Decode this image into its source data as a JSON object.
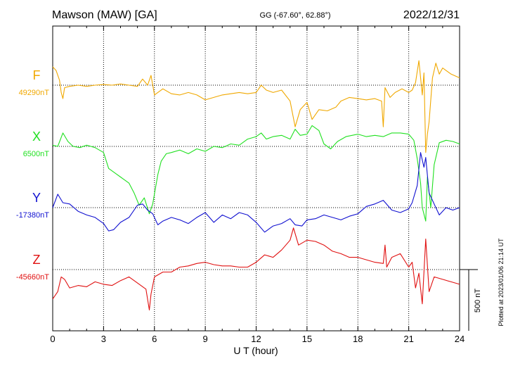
{
  "header": {
    "station": "Mawson (MAW)  [GA]",
    "coords": "GG (-67.60°,  62.88°)",
    "date": "2022/12/31"
  },
  "chart_data": {
    "type": "line",
    "xlabel": "U T (hour)",
    "xlim": [
      0,
      24
    ],
    "xticks": [
      "0",
      "3",
      "6",
      "9",
      "12",
      "15",
      "18",
      "21",
      "24"
    ],
    "unit": "nT",
    "scale_label": "500 nT",
    "scale_nT": 500,
    "grid": true,
    "footnote": "Plotted at 2023/01/06 21:14 UT",
    "series": [
      {
        "name": "F",
        "base_label": "49290nT",
        "base_nT": 49290,
        "color": "#f0a800",
        "points": [
          [
            0,
            150
          ],
          [
            0.2,
            120
          ],
          [
            0.4,
            40
          ],
          [
            0.5,
            -60
          ],
          [
            0.6,
            -110
          ],
          [
            0.7,
            -20
          ],
          [
            1.0,
            -10
          ],
          [
            1.5,
            0
          ],
          [
            2.0,
            -10
          ],
          [
            2.5,
            0
          ],
          [
            3.0,
            5
          ],
          [
            3.5,
            0
          ],
          [
            4.0,
            10
          ],
          [
            4.5,
            0
          ],
          [
            5.0,
            -10
          ],
          [
            5.3,
            50
          ],
          [
            5.6,
            0
          ],
          [
            5.8,
            80
          ],
          [
            6.0,
            -80
          ],
          [
            6.2,
            -60
          ],
          [
            6.5,
            -30
          ],
          [
            7.0,
            -70
          ],
          [
            7.5,
            -80
          ],
          [
            8.0,
            -60
          ],
          [
            8.5,
            -80
          ],
          [
            9.0,
            -120
          ],
          [
            9.5,
            -100
          ],
          [
            10.0,
            -80
          ],
          [
            10.5,
            -70
          ],
          [
            11.0,
            -60
          ],
          [
            11.5,
            -70
          ],
          [
            12.0,
            -60
          ],
          [
            12.3,
            0
          ],
          [
            12.6,
            -40
          ],
          [
            13.0,
            -60
          ],
          [
            13.5,
            -40
          ],
          [
            14.0,
            -130
          ],
          [
            14.3,
            -340
          ],
          [
            14.6,
            -200
          ],
          [
            15.0,
            -140
          ],
          [
            15.3,
            -280
          ],
          [
            15.7,
            -200
          ],
          [
            16.2,
            -210
          ],
          [
            16.7,
            -180
          ],
          [
            17.0,
            -130
          ],
          [
            17.5,
            -100
          ],
          [
            18.0,
            -110
          ],
          [
            18.5,
            -120
          ],
          [
            19.0,
            -110
          ],
          [
            19.4,
            -130
          ],
          [
            19.5,
            -340
          ],
          [
            19.6,
            -20
          ],
          [
            19.9,
            -100
          ],
          [
            20.2,
            -60
          ],
          [
            20.6,
            -30
          ],
          [
            21.0,
            -60
          ],
          [
            21.2,
            -40
          ],
          [
            21.4,
            20
          ],
          [
            21.6,
            200
          ],
          [
            21.8,
            -80
          ],
          [
            21.9,
            100
          ],
          [
            22.0,
            -550
          ],
          [
            22.1,
            -400
          ],
          [
            22.2,
            -300
          ],
          [
            22.4,
            60
          ],
          [
            22.6,
            180
          ],
          [
            22.8,
            90
          ],
          [
            23.0,
            140
          ],
          [
            23.5,
            90
          ],
          [
            24,
            60
          ]
        ]
      },
      {
        "name": "X",
        "base_label": "6500nT",
        "base_nT": 6500,
        "color": "#20e020",
        "points": [
          [
            0,
            10
          ],
          [
            0.3,
            0
          ],
          [
            0.6,
            110
          ],
          [
            0.9,
            40
          ],
          [
            1.2,
            0
          ],
          [
            1.6,
            -10
          ],
          [
            2.0,
            10
          ],
          [
            2.5,
            -10
          ],
          [
            3.0,
            -50
          ],
          [
            3.3,
            -180
          ],
          [
            3.7,
            -220
          ],
          [
            4.0,
            -250
          ],
          [
            4.5,
            -300
          ],
          [
            4.8,
            -380
          ],
          [
            5.1,
            -480
          ],
          [
            5.4,
            -420
          ],
          [
            5.7,
            -550
          ],
          [
            5.9,
            -470
          ],
          [
            6.2,
            -230
          ],
          [
            6.4,
            -120
          ],
          [
            6.7,
            -60
          ],
          [
            7.0,
            -50
          ],
          [
            7.5,
            -30
          ],
          [
            8.0,
            -60
          ],
          [
            8.5,
            -20
          ],
          [
            9.0,
            -40
          ],
          [
            9.5,
            0
          ],
          [
            10.0,
            -10
          ],
          [
            10.5,
            20
          ],
          [
            11.0,
            10
          ],
          [
            11.5,
            60
          ],
          [
            12.0,
            80
          ],
          [
            12.3,
            110
          ],
          [
            12.6,
            60
          ],
          [
            13.0,
            80
          ],
          [
            13.5,
            90
          ],
          [
            14.0,
            60
          ],
          [
            14.3,
            140
          ],
          [
            14.6,
            90
          ],
          [
            15.0,
            100
          ],
          [
            15.3,
            170
          ],
          [
            15.7,
            130
          ],
          [
            16.0,
            20
          ],
          [
            16.4,
            -20
          ],
          [
            16.8,
            40
          ],
          [
            17.3,
            80
          ],
          [
            18.0,
            100
          ],
          [
            18.5,
            80
          ],
          [
            19.0,
            90
          ],
          [
            19.5,
            80
          ],
          [
            20.0,
            110
          ],
          [
            20.5,
            110
          ],
          [
            21.0,
            100
          ],
          [
            21.3,
            50
          ],
          [
            21.5,
            -100
          ],
          [
            21.7,
            -300
          ],
          [
            21.8,
            -500
          ],
          [
            22.0,
            -610
          ],
          [
            22.1,
            -250
          ],
          [
            22.3,
            -500
          ],
          [
            22.5,
            -150
          ],
          [
            22.8,
            30
          ],
          [
            23.2,
            50
          ],
          [
            23.6,
            40
          ],
          [
            24,
            20
          ]
        ]
      },
      {
        "name": "Y",
        "base_label": "-17380nT",
        "base_nT": -17380,
        "color": "#1010d0",
        "points": [
          [
            0,
            0
          ],
          [
            0.3,
            110
          ],
          [
            0.6,
            40
          ],
          [
            1.0,
            30
          ],
          [
            1.5,
            -30
          ],
          [
            2.0,
            -60
          ],
          [
            2.5,
            -80
          ],
          [
            3.0,
            -130
          ],
          [
            3.3,
            -190
          ],
          [
            3.6,
            -180
          ],
          [
            4.0,
            -120
          ],
          [
            4.5,
            -80
          ],
          [
            5.0,
            20
          ],
          [
            5.3,
            30
          ],
          [
            5.6,
            -20
          ],
          [
            5.9,
            -50
          ],
          [
            6.2,
            -140
          ],
          [
            6.5,
            -110
          ],
          [
            7.0,
            -80
          ],
          [
            7.5,
            -100
          ],
          [
            8.0,
            -130
          ],
          [
            8.5,
            -80
          ],
          [
            9.0,
            -40
          ],
          [
            9.5,
            -120
          ],
          [
            10.0,
            -60
          ],
          [
            10.5,
            -90
          ],
          [
            11.0,
            -40
          ],
          [
            11.5,
            -60
          ],
          [
            12.0,
            -120
          ],
          [
            12.5,
            -200
          ],
          [
            13.0,
            -150
          ],
          [
            13.5,
            -130
          ],
          [
            14.0,
            -90
          ],
          [
            14.3,
            -140
          ],
          [
            14.7,
            -150
          ],
          [
            15.0,
            -100
          ],
          [
            15.5,
            -90
          ],
          [
            16.0,
            -60
          ],
          [
            16.5,
            -80
          ],
          [
            17.0,
            -100
          ],
          [
            17.5,
            -70
          ],
          [
            18.0,
            -50
          ],
          [
            18.5,
            10
          ],
          [
            19.0,
            30
          ],
          [
            19.5,
            60
          ],
          [
            20.0,
            -20
          ],
          [
            20.5,
            -40
          ],
          [
            21.0,
            -10
          ],
          [
            21.2,
            40
          ],
          [
            21.5,
            180
          ],
          [
            21.7,
            450
          ],
          [
            21.9,
            330
          ],
          [
            22.0,
            410
          ],
          [
            22.2,
            120
          ],
          [
            22.5,
            30
          ],
          [
            22.8,
            -60
          ],
          [
            23.2,
            0
          ],
          [
            23.6,
            -20
          ],
          [
            24,
            0
          ]
        ]
      },
      {
        "name": "Z",
        "base_label": "-45660nT",
        "base_nT": -45660,
        "color": "#e01010",
        "points": [
          [
            0,
            -240
          ],
          [
            0.3,
            -180
          ],
          [
            0.5,
            -60
          ],
          [
            0.7,
            -80
          ],
          [
            1.0,
            -150
          ],
          [
            1.5,
            -130
          ],
          [
            2.0,
            -140
          ],
          [
            2.5,
            -100
          ],
          [
            3.0,
            -120
          ],
          [
            3.5,
            -130
          ],
          [
            4.0,
            -90
          ],
          [
            4.5,
            -60
          ],
          [
            5.0,
            -110
          ],
          [
            5.5,
            -160
          ],
          [
            5.7,
            -330
          ],
          [
            5.8,
            -200
          ],
          [
            6.0,
            -60
          ],
          [
            6.5,
            -20
          ],
          [
            7.0,
            -20
          ],
          [
            7.5,
            20
          ],
          [
            8.0,
            30
          ],
          [
            8.5,
            50
          ],
          [
            9.0,
            60
          ],
          [
            9.5,
            40
          ],
          [
            10.0,
            30
          ],
          [
            10.5,
            30
          ],
          [
            11.0,
            20
          ],
          [
            11.5,
            20
          ],
          [
            12.0,
            60
          ],
          [
            12.5,
            120
          ],
          [
            13.0,
            100
          ],
          [
            13.5,
            160
          ],
          [
            14.0,
            240
          ],
          [
            14.2,
            340
          ],
          [
            14.5,
            200
          ],
          [
            15.0,
            240
          ],
          [
            15.5,
            230
          ],
          [
            16.0,
            200
          ],
          [
            16.5,
            150
          ],
          [
            17.0,
            130
          ],
          [
            17.5,
            100
          ],
          [
            18.0,
            100
          ],
          [
            18.5,
            80
          ],
          [
            19.0,
            60
          ],
          [
            19.5,
            50
          ],
          [
            19.6,
            200
          ],
          [
            19.7,
            20
          ],
          [
            20.0,
            100
          ],
          [
            20.5,
            130
          ],
          [
            21.0,
            20
          ],
          [
            21.2,
            60
          ],
          [
            21.4,
            -150
          ],
          [
            21.6,
            -30
          ],
          [
            21.8,
            -280
          ],
          [
            22.0,
            250
          ],
          [
            22.2,
            -180
          ],
          [
            22.5,
            -60
          ],
          [
            23.0,
            -80
          ],
          [
            23.5,
            -100
          ],
          [
            24,
            -120
          ]
        ]
      }
    ]
  }
}
